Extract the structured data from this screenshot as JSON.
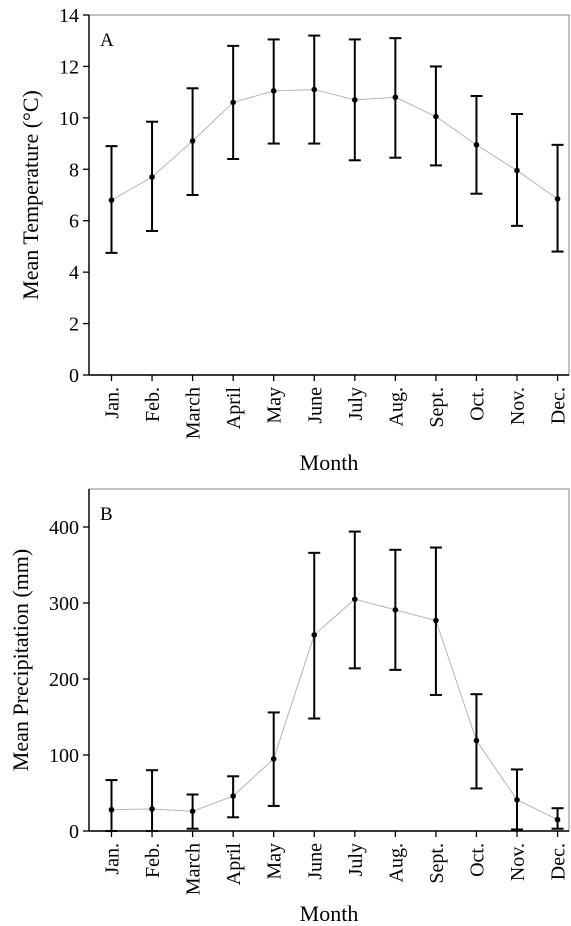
{
  "chart_data": [
    {
      "type": "line",
      "panel_label": "A",
      "xlabel": "Month",
      "ylabel": "Mean Temperature (°C)",
      "ylim": [
        0,
        14
      ],
      "yticks": [
        0,
        2,
        4,
        6,
        8,
        10,
        12,
        14
      ],
      "categories": [
        "Jan.",
        "Feb.",
        "March",
        "April",
        "May",
        "June",
        "July",
        "Aug.",
        "Sept.",
        "Oct.",
        "Nov.",
        "Dec."
      ],
      "series": [
        {
          "values": [
            6.8,
            7.7,
            9.1,
            10.6,
            11.05,
            11.1,
            10.7,
            10.8,
            10.05,
            8.95,
            7.95,
            6.85
          ],
          "error_low": [
            4.75,
            5.6,
            7.0,
            8.4,
            9.0,
            9.0,
            8.35,
            8.45,
            8.15,
            7.05,
            5.8,
            4.8
          ],
          "error_high": [
            8.9,
            9.85,
            11.15,
            12.8,
            13.05,
            13.2,
            13.05,
            13.1,
            12.0,
            10.85,
            10.15,
            8.95
          ]
        }
      ],
      "grid": false
    },
    {
      "type": "line",
      "panel_label": "B",
      "xlabel": "Month",
      "ylabel": "Mean Precipitation (mm)",
      "ylim": [
        0,
        450
      ],
      "yticks": [
        0,
        100,
        200,
        300,
        400
      ],
      "categories": [
        "Jan.",
        "Feb.",
        "March",
        "April",
        "May",
        "June",
        "July",
        "Aug.",
        "Sept.",
        "Oct.",
        "Nov.",
        "Dec."
      ],
      "series": [
        {
          "values": [
            28,
            29,
            26,
            46,
            95,
            258,
            305,
            291,
            277,
            119,
            41,
            15
          ],
          "error_low": [
            0,
            0,
            3,
            18,
            33,
            148,
            214,
            212,
            179,
            56,
            2,
            3
          ],
          "error_high": [
            67,
            80,
            48,
            72,
            156,
            366,
            394,
            370,
            373,
            180,
            81,
            30
          ]
        }
      ],
      "grid": false
    }
  ]
}
